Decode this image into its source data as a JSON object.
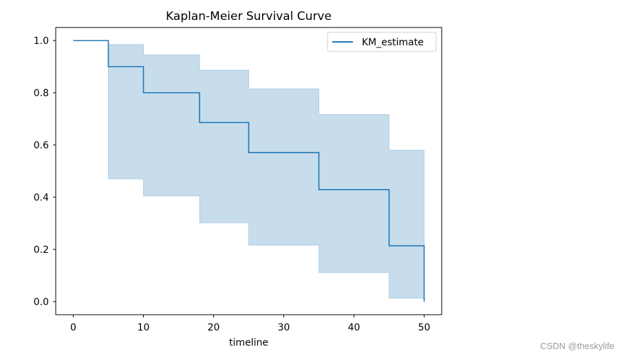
{
  "chart_data": {
    "type": "line",
    "title": "Kaplan-Meier Survival Curve",
    "xlabel": "timeline",
    "ylabel": "",
    "xlim": [
      -2.5,
      52.5
    ],
    "ylim": [
      -0.05,
      1.05
    ],
    "xticks": [
      0,
      10,
      20,
      30,
      40,
      50
    ],
    "xtick_labels": [
      "0",
      "10",
      "20",
      "30",
      "40",
      "50"
    ],
    "yticks": [
      0.0,
      0.2,
      0.4,
      0.6,
      0.8,
      1.0
    ],
    "ytick_labels": [
      "0.0",
      "0.2",
      "0.4",
      "0.6",
      "0.8",
      "1.0"
    ],
    "grid": false,
    "legend_position": "top-right",
    "series": [
      {
        "name": "KM_estimate",
        "color": "#1f77b4",
        "step": "post",
        "x": [
          0,
          5,
          10,
          18,
          25,
          35,
          45,
          50
        ],
        "y": [
          1.0,
          0.9,
          0.8,
          0.686,
          0.571,
          0.429,
          0.214,
          0.0
        ],
        "ci_lower": [
          1.0,
          0.47,
          0.405,
          0.302,
          0.216,
          0.112,
          0.013,
          0.013
        ],
        "ci_upper": [
          1.0,
          0.985,
          0.945,
          0.887,
          0.815,
          0.717,
          0.58,
          0.58
        ],
        "ci_color": "#1f77b4",
        "ci_alpha": 0.25
      }
    ]
  },
  "watermark": "CSDN @theskylife"
}
